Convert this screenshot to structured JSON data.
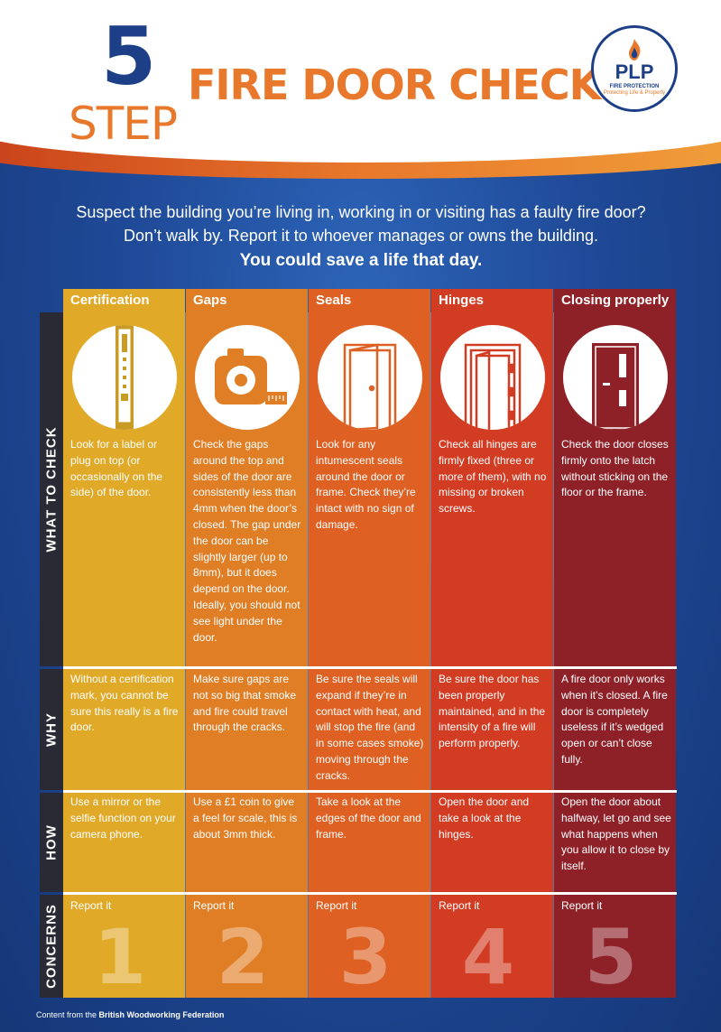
{
  "header": {
    "number": "5",
    "step": "STEP",
    "title": "FIRE DOOR CHECK"
  },
  "logo": {
    "name": "PLP",
    "tagline": "FIRE PROTECTION",
    "sub": "Protecting Life & Property"
  },
  "intro": {
    "line1": "Suspect the building you’re living in, working in or visiting has a faulty fire door?",
    "line2": "Don’t walk by. Report it to whoever manages or owns the building.",
    "line3": "You could save a life that day."
  },
  "rows": {
    "what": "WHAT TO CHECK",
    "why": "WHY",
    "how": "HOW",
    "concerns": "CONCERNS"
  },
  "columns": [
    {
      "header": "Certification",
      "color": "#e0a928",
      "icon": "certification-label-icon",
      "what": "Look for a label or plug on top (or occasionally on the side) of the door.",
      "why": "Without a certification mark, you cannot be sure this really is a fire door.",
      "how": "Use a mirror or the selfie function on your camera phone.",
      "concern": "Report it",
      "number": "1"
    },
    {
      "header": "Gaps",
      "color": "#e07e26",
      "icon": "tape-measure-icon",
      "what": "Check the gaps around the top and sides of the door are consistently less than 4mm when the door’s closed. The gap under the door can be slightly larger (up to 8mm), but it does depend on the door. Ideally, you should not see light under the door.",
      "why": "Make sure gaps are not so big that smoke and fire could travel through the cracks.",
      "how": "Use a £1 coin to give a feel for scale, this is about 3mm thick.",
      "concern": "Report it",
      "number": "2"
    },
    {
      "header": "Seals",
      "color": "#de6022",
      "icon": "door-seals-icon",
      "what": "Look for any intumescent seals around the door or frame. Check they’re intact with no sign of damage.",
      "why": "Be sure the seals will expand if they’re in contact with heat, and will stop the fire (and in some cases smoke) moving through the cracks.",
      "how": "Take a look at the edges of the door and frame.",
      "concern": "Report it",
      "number": "3"
    },
    {
      "header": "Hinges",
      "color": "#d23c22",
      "icon": "door-hinges-icon",
      "what": "Check all hinges are firmly fixed (three or more of them), with no missing or broken screws.",
      "why": "Be sure the door has been properly maintained, and in the intensity of a fire will perform properly.",
      "how": "Open the door and take a look at the hinges.",
      "concern": "Report it",
      "number": "4"
    },
    {
      "header": "Closing properly",
      "color": "#8e2128",
      "icon": "closed-door-icon",
      "what": "Check the door closes firmly onto the latch without sticking on the floor or the frame.",
      "why": "A fire door only works when it’s closed. A fire door is completely useless if it’s wedged open or can’t close fully.",
      "how": "Open the door about halfway, let go and see what happens when you allow it to close by itself.",
      "concern": "Report it",
      "number": "5"
    }
  ],
  "footer": {
    "prefix": "Content from the ",
    "source": "British Woodworking Federation"
  }
}
